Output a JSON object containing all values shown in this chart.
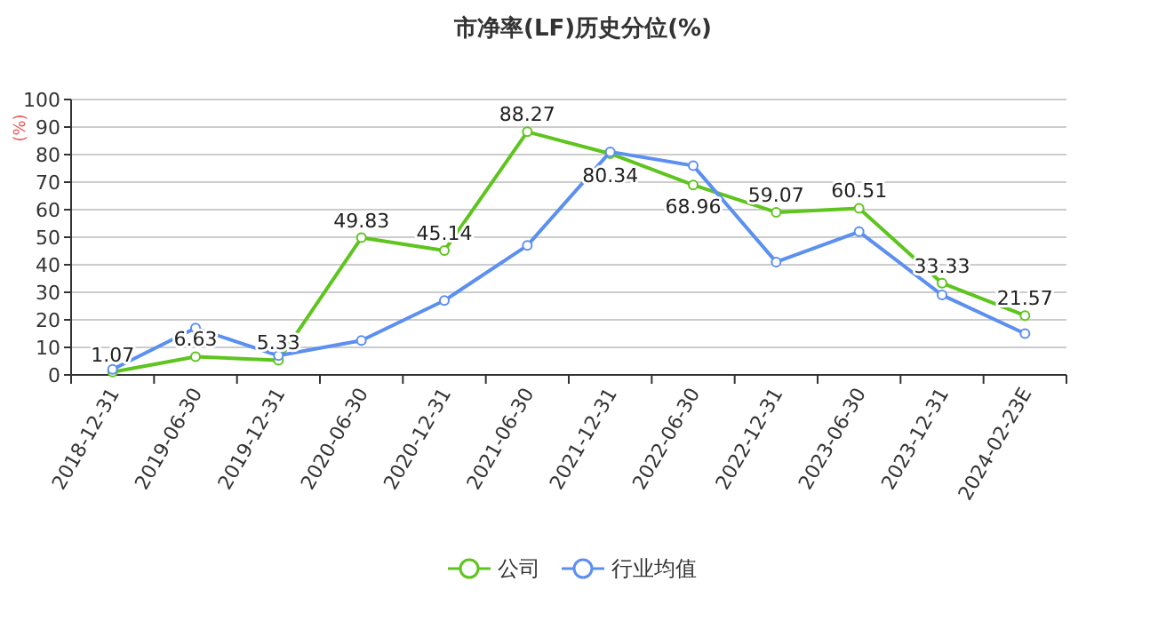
{
  "chart_data": {
    "type": "line",
    "title": "市净率(LF)历史分位(%)",
    "ylabel": "(%)",
    "categories": [
      "2018-12-31",
      "2019-06-30",
      "2019-12-31",
      "2020-06-30",
      "2020-12-31",
      "2021-06-30",
      "2021-12-31",
      "2022-06-30",
      "2022-12-31",
      "2023-06-30",
      "2023-12-31",
      "2024-02-23E"
    ],
    "series": [
      {
        "name": "公司",
        "color": "#5ec41e",
        "values": [
          1.07,
          6.63,
          5.33,
          49.83,
          45.14,
          88.27,
          80.34,
          68.96,
          59.07,
          60.51,
          33.33,
          21.57
        ],
        "value_labels": [
          "1.07",
          "6.63",
          "5.33",
          "49.83",
          "45.14",
          "88.27",
          "80.34",
          "68.96",
          "59.07",
          "60.51",
          "33.33",
          "21.57"
        ]
      },
      {
        "name": "行业均值",
        "color": "#5b8ff0",
        "values": [
          2,
          17,
          7,
          12.5,
          27,
          47,
          81,
          76,
          41,
          52,
          29,
          15
        ]
      }
    ],
    "ylim": [
      0,
      100
    ],
    "yticks": [
      0,
      10,
      20,
      30,
      40,
      50,
      60,
      70,
      80,
      90,
      100
    ],
    "grid": "y",
    "legend": "bottom",
    "marker": "circle",
    "line_style": "solid"
  }
}
